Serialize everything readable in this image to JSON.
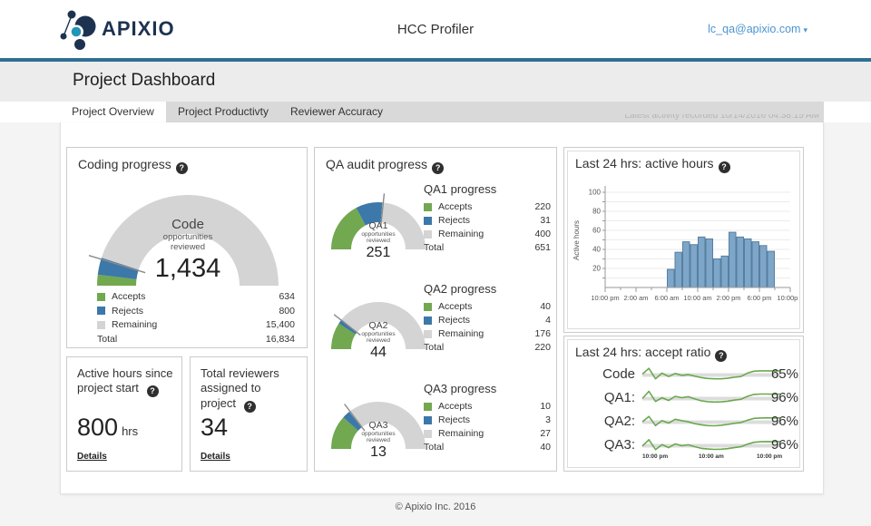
{
  "header": {
    "brand": "APIXIO",
    "app_title": "HCC Profiler",
    "account_label": "lc_qa@apixio.com"
  },
  "icons": {
    "help": "?",
    "caret": "▾"
  },
  "page": {
    "title": "Project Dashboard",
    "tabs": [
      {
        "label": "Project Overview",
        "active": true
      },
      {
        "label": "Project Productivty",
        "active": false
      },
      {
        "label": "Reviewer Accuracy",
        "active": false
      }
    ],
    "latest_activity": "Latest activity recorded 10/14/2016 04:38:15 AM",
    "footer": "© Apixio Inc. 2016"
  },
  "qa_panel_title": "QA audit progress",
  "stat_boxes": [
    {
      "title": "Active hours since project start",
      "value": "800",
      "unit": "hrs",
      "link_label": "Details"
    },
    {
      "title": "Total reviewers assigned to project",
      "value": "34",
      "unit": "",
      "link_label": "Details"
    }
  ],
  "colors": {
    "accent_teal": "#2e7091",
    "navy": "#1d3250",
    "link_blue": "#4d94d1",
    "accepts_green": "#71a850",
    "rejects_blue": "#3c78a9",
    "remaining_gray": "#d4d4d4",
    "bar_fill": "#7da6c8",
    "bar_stroke": "#587f9f",
    "spark_green": "#6aa84f"
  },
  "chart_data": [
    {
      "id": "coding-gauge",
      "type": "gauge",
      "title": "Coding progress",
      "center_top": "Code",
      "center_sub": "opportunities reviewed",
      "center_value": "1,434",
      "legend": [
        {
          "label": "Accepts",
          "value": "634"
        },
        {
          "label": "Rejects",
          "value": "800"
        },
        {
          "label": "Remaining",
          "value": "15,400"
        }
      ],
      "total_label": "Total",
      "total_value": "16,834",
      "values": {
        "accepts": 634,
        "rejects": 800,
        "remaining": 15400,
        "total": 16834
      },
      "layout": {
        "green_deg": 7,
        "blue_deg": 11,
        "needle_deg": 17
      }
    },
    {
      "id": "qa1-gauge",
      "type": "gauge",
      "legend_title": "QA1 progress",
      "center_top": "QA1",
      "center_sub": "opportunities reviewed",
      "center_value": "251",
      "legend": [
        {
          "label": "Accepts",
          "value": "220"
        },
        {
          "label": "Rejects",
          "value": "31"
        },
        {
          "label": "Remaining",
          "value": "400"
        }
      ],
      "total_label": "Total",
      "total_value": "651",
      "values": {
        "accepts": 220,
        "rejects": 31,
        "remaining": 400,
        "total": 651
      },
      "layout": {
        "green_deg": 62,
        "blue_deg": 33,
        "needle_deg": 96
      }
    },
    {
      "id": "qa2-gauge",
      "type": "gauge",
      "legend_title": "QA2 progress",
      "center_top": "QA2",
      "center_sub": "opportunities reviewed",
      "center_value": "44",
      "legend": [
        {
          "label": "Accepts",
          "value": "40"
        },
        {
          "label": "Rejects",
          "value": "4"
        },
        {
          "label": "Remaining",
          "value": "176"
        }
      ],
      "total_label": "Total",
      "total_value": "220",
      "values": {
        "accepts": 40,
        "rejects": 4,
        "remaining": 176,
        "total": 220
      },
      "layout": {
        "green_deg": 33,
        "blue_deg": 6,
        "needle_deg": 38
      }
    },
    {
      "id": "qa3-gauge",
      "type": "gauge",
      "legend_title": "QA3 progress",
      "center_top": "QA3",
      "center_sub": "opportunities reviewed",
      "center_value": "13",
      "legend": [
        {
          "label": "Accepts",
          "value": "10"
        },
        {
          "label": "Rejects",
          "value": "3"
        },
        {
          "label": "Remaining",
          "value": "27"
        }
      ],
      "total_label": "Total",
      "total_value": "40",
      "values": {
        "accepts": 10,
        "rejects": 3,
        "remaining": 27,
        "total": 40
      },
      "layout": {
        "green_deg": 42,
        "blue_deg": 10,
        "needle_deg": 53
      }
    },
    {
      "id": "active-hours",
      "type": "bar",
      "title": "Last 24 hrs: active hours",
      "ylabel": "Active hours",
      "ylim": [
        0,
        100
      ],
      "ytick_step": 20,
      "grid_step": 10,
      "x_labels": [
        "10:00 pm",
        "2:00 am",
        "6:00 am",
        "10:00 am",
        "2:00 pm",
        "6:00 pm",
        "10:00pm"
      ],
      "values": [
        0,
        0,
        0,
        0,
        0,
        0,
        0,
        0,
        19,
        37,
        48,
        45,
        53,
        51,
        30,
        33,
        58,
        53,
        51,
        48,
        44,
        38,
        0,
        0
      ]
    },
    {
      "id": "accept-ratio",
      "type": "line",
      "title": "Last 24 hrs: accept ratio",
      "x_labels": [
        "10:00 pm",
        "10:00 am",
        "10:00 pm"
      ],
      "series": [
        {
          "label": "Code",
          "value_label": "65%",
          "y": [
            55,
            85,
            30,
            60,
            42,
            58,
            48,
            52,
            44,
            36,
            32,
            30,
            30,
            33,
            38,
            42,
            60,
            70,
            72,
            72,
            71,
            72
          ]
        },
        {
          "label": "QA1:",
          "value_label": "96%",
          "y": [
            50,
            88,
            35,
            55,
            40,
            62,
            55,
            60,
            48,
            38,
            34,
            32,
            33,
            36,
            42,
            46,
            62,
            72,
            74,
            74,
            73,
            74
          ]
        },
        {
          "label": "QA2:",
          "value_label": "96%",
          "y": [
            52,
            80,
            32,
            58,
            45,
            65,
            58,
            52,
            42,
            36,
            32,
            31,
            34,
            38,
            44,
            48,
            60,
            70,
            72,
            73,
            72,
            73
          ]
        },
        {
          "label": "QA3:",
          "value_label": "96%",
          "y": [
            48,
            82,
            30,
            56,
            40,
            60,
            50,
            55,
            45,
            36,
            33,
            31,
            32,
            35,
            40,
            45,
            58,
            68,
            71,
            72,
            71,
            72
          ]
        }
      ]
    }
  ]
}
